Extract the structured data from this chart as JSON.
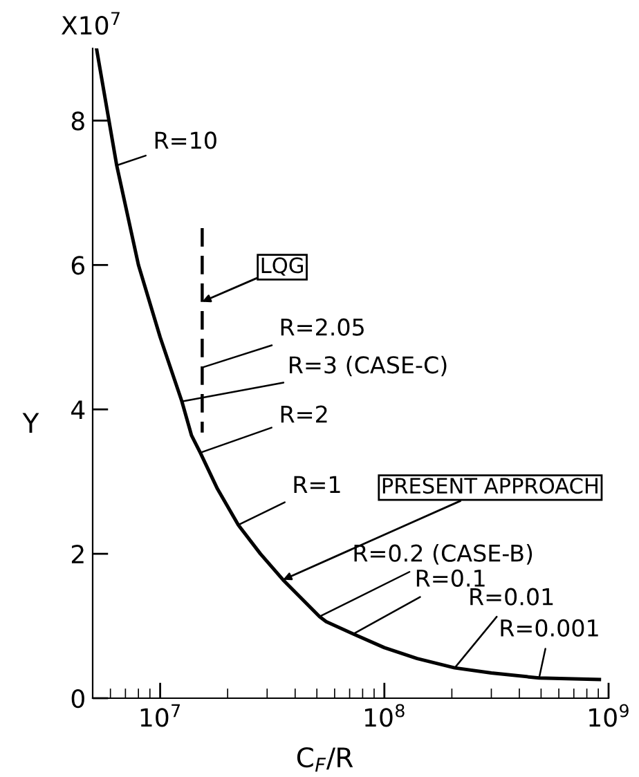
{
  "chart_data": {
    "type": "line",
    "xlabel": "C$_{F}$/R",
    "ylabel": "Y",
    "log": "x",
    "xlim": [
      5000000,
      1000000000
    ],
    "xticks": [
      {
        "value": 10000000,
        "label": "10$^{7}$"
      },
      {
        "value": 100000000,
        "label": "10$^{8}$"
      },
      {
        "value": 1000000000,
        "label": "10$^{9}$"
      }
    ],
    "ylim": [
      0,
      9
    ],
    "yticks": [
      0,
      2,
      4,
      6,
      8
    ],
    "grid": false,
    "legend": false,
    "marker": "none",
    "series": [
      {
        "name": "PRESENT APPROACH",
        "color": "#000000",
        "line_style": "solid",
        "x": [
          5200000,
          6400000,
          8000000,
          10000000,
          12500000,
          13800000,
          15100000,
          18000000,
          22300000,
          28000000,
          35300000,
          51400000,
          55000000,
          72600000,
          100000000,
          140000000,
          206000000,
          300000000,
          490000000,
          910000000
        ],
        "values": [
          9.0,
          7.38,
          6.0,
          5.0,
          4.11,
          3.64,
          3.4,
          2.9,
          2.4,
          2.0,
          1.64,
          1.13,
          1.06,
          0.89,
          0.7,
          0.55,
          0.42,
          0.35,
          0.28,
          0.26
        ]
      },
      {
        "name": "LQG",
        "color": "#000000",
        "line_style": "dashed",
        "x": [
          15400000,
          15400000
        ],
        "values": [
          6.51,
          3.68
        ]
      }
    ],
    "annotations": [
      "X10$^{7}$",
      {
        "text": "R=10",
        "x": 6400000,
        "y": 7.38
      },
      {
        "text": "R=2.05",
        "x": 15400000,
        "y": 4.58
      },
      {
        "text": "R=3 (CASE-C)",
        "x": 12500000,
        "y": 4.11
      },
      {
        "text": "R=2",
        "x": 15100000,
        "y": 3.4
      },
      {
        "text": "R=1",
        "x": 22300000,
        "y": 2.4
      },
      {
        "text": "R=0.2 (CASE-B)",
        "x": 51400000,
        "y": 1.13
      },
      {
        "text": "R=0.1",
        "x": 72600000,
        "y": 0.89
      },
      {
        "text": "R=0.01",
        "x": 206000000,
        "y": 0.42
      },
      {
        "text": "R=0.001",
        "x": 490000000,
        "y": 0.28
      }
    ]
  }
}
